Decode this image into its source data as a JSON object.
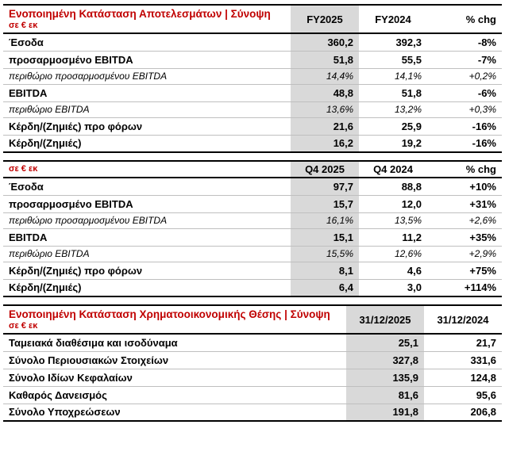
{
  "colors": {
    "accent_red": "#c00000",
    "shaded_column": "#d9d9d9"
  },
  "income_fy": {
    "title": "Ενοποιημένη Κατάσταση Αποτελεσμάτων | Σύνοψη",
    "subtitle": "σε € εκ",
    "columns": [
      "FY2025",
      "FY2024",
      "% chg"
    ],
    "rows": [
      {
        "label": "Έσοδα",
        "cur": "360,2",
        "prev": "392,3",
        "chg": "-8%"
      },
      {
        "label": "προσαρμοσμένο EBITDA",
        "cur": "51,8",
        "prev": "55,5",
        "chg": "-7%"
      },
      {
        "label": "περιθώριο προσαρμοσμένου EBITDA",
        "cur": "14,4%",
        "prev": "14,1%",
        "chg": "+0,2%"
      },
      {
        "label": "EBITDA",
        "cur": "48,8",
        "prev": "51,8",
        "chg": "-6%"
      },
      {
        "label": "περιθώριο EBITDA",
        "cur": "13,6%",
        "prev": "13,2%",
        "chg": "+0,3%"
      },
      {
        "label": "Κέρδη/(Ζημιές) προ φόρων",
        "cur": "21,6",
        "prev": "25,9",
        "chg": "-16%"
      },
      {
        "label": "Κέρδη/(Ζημιές)",
        "cur": "16,2",
        "prev": "19,2",
        "chg": "-16%"
      }
    ]
  },
  "income_q4": {
    "subtitle": "σε € εκ",
    "columns": [
      "Q4 2025",
      "Q4 2024",
      "% chg"
    ],
    "rows": [
      {
        "label": "Έσοδα",
        "cur": "97,7",
        "prev": "88,8",
        "chg": "+10%"
      },
      {
        "label": "προσαρμοσμένο EBITDA",
        "cur": "15,7",
        "prev": "12,0",
        "chg": "+31%"
      },
      {
        "label": "περιθώριο προσαρμοσμένου EBITDA",
        "cur": "16,1%",
        "prev": "13,5%",
        "chg": "+2,6%"
      },
      {
        "label": "EBITDA",
        "cur": "15,1",
        "prev": "11,2",
        "chg": "+35%"
      },
      {
        "label": "περιθώριο EBITDA",
        "cur": "15,5%",
        "prev": "12,6%",
        "chg": "+2,9%"
      },
      {
        "label": "Κέρδη/(Ζημιές) προ φόρων",
        "cur": "8,1",
        "prev": "4,6",
        "chg": "+75%"
      },
      {
        "label": "Κέρδη/(Ζημιές)",
        "cur": "6,4",
        "prev": "3,0",
        "chg": "+114%"
      }
    ]
  },
  "balance": {
    "title": "Ενοποιημένη Κατάσταση Χρηματοοικονομικής Θέσης | Σύνοψη",
    "subtitle": "σε € εκ",
    "columns": [
      "31/12/2025",
      "31/12/2024"
    ],
    "rows": [
      {
        "label": "Ταμειακά διαθέσιμα και ισοδύναμα",
        "cur": "25,1",
        "prev": "21,7"
      },
      {
        "label": "Σύνολο Περιουσιακών Στοιχείων",
        "cur": "327,8",
        "prev": "331,6"
      },
      {
        "label": "Σύνολο Ιδίων Κεφαλαίων",
        "cur": "135,9",
        "prev": "124,8"
      },
      {
        "label": "Καθαρός Δανεισμός",
        "cur": "81,6",
        "prev": "95,6"
      },
      {
        "label": "Σύνολο Υποχρεώσεων",
        "cur": "191,8",
        "prev": "206,8"
      }
    ]
  }
}
